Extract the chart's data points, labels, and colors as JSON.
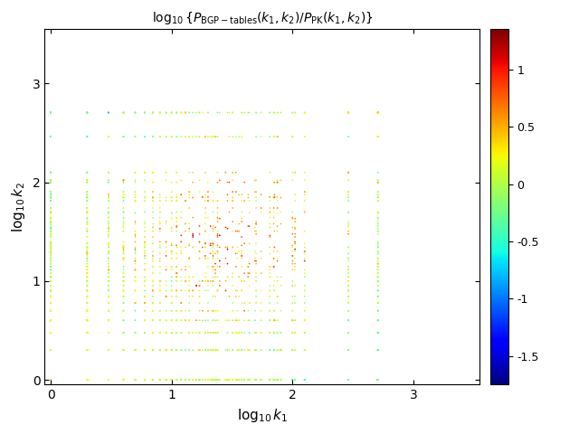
{
  "title": "log$_{10}${P$_{BGP-tables}$(k$_1$,k$_2$)/P$_{PK}$(k$_1$,k$_2$)}",
  "xlabel": "log$_{10}k_1$",
  "ylabel": "log$_{10}k_2$",
  "xlim": [
    -0.05,
    3.55
  ],
  "ylim": [
    -0.05,
    3.55
  ],
  "xticks": [
    0,
    1,
    2,
    3
  ],
  "yticks": [
    0,
    1,
    2,
    3
  ],
  "clim": [
    -1.75,
    1.35
  ],
  "colorbar_ticks": [
    -1.5,
    -1.0,
    -0.5,
    0.0,
    0.5,
    1.0
  ],
  "colorbar_ticklabels": [
    "-1.5",
    "-1",
    "-0.5",
    "0",
    "0.5",
    "1"
  ],
  "seed": 42,
  "max_k": 3300,
  "figsize": [
    6.4,
    4.8
  ],
  "dpi": 100
}
